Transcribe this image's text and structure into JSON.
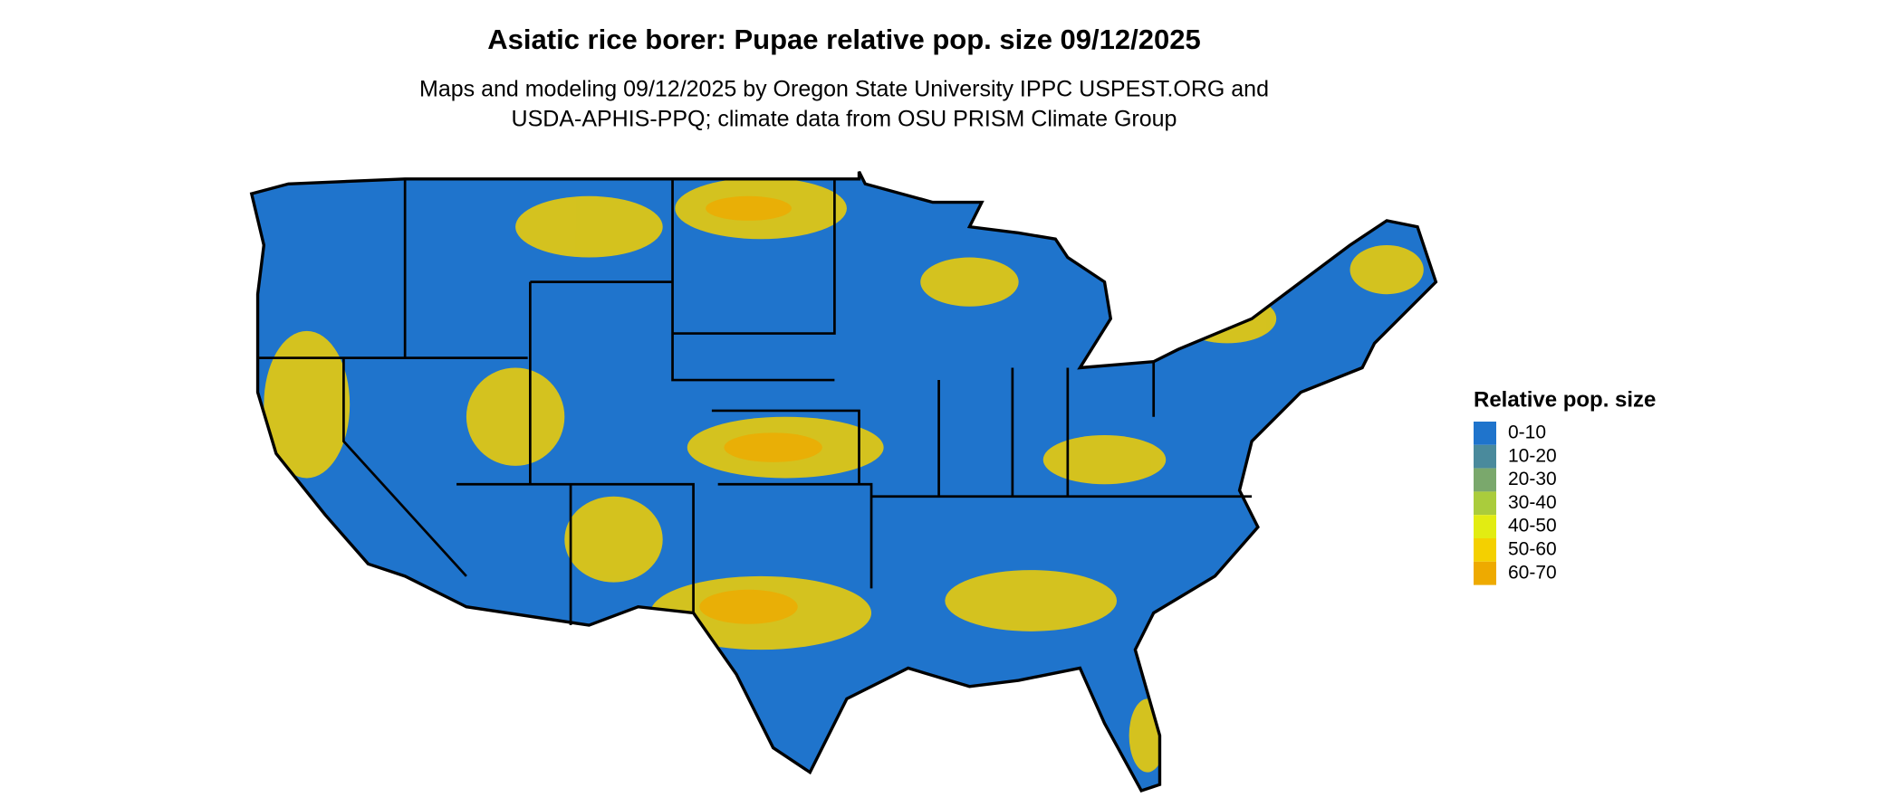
{
  "map": {
    "title": "Asiatic rice borer: Pupae relative pop. size 09/12/2025",
    "subtitle": [
      "Maps and modeling 09/12/2025 by Oregon State University IPPC USPEST.ORG and",
      "USDA-APHIS-PPQ; climate data from OSU PRISM Climate Group"
    ],
    "legend": {
      "title": "Relative pop. size",
      "items": [
        {
          "label": "0-10",
          "color": "#1f74cc"
        },
        {
          "label": "10-20",
          "color": "#4a8a9c"
        },
        {
          "label": "20-30",
          "color": "#7aa86c"
        },
        {
          "label": "30-40",
          "color": "#aacc3c"
        },
        {
          "label": "40-50",
          "color": "#e2ec12"
        },
        {
          "label": "50-60",
          "color": "#f4d000"
        },
        {
          "label": "60-70",
          "color": "#eeaa00"
        }
      ]
    }
  }
}
